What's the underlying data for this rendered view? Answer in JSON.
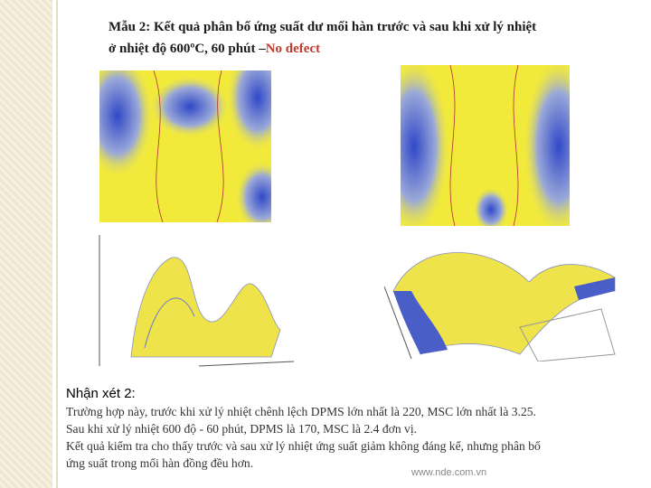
{
  "header": {
    "title_line1": "Mẫu 2: Kết quả phân bố ứng suất dư mối hàn trước và sau khi xử lý nhiệt",
    "title_line2": "ở nhiệt độ 600ºC, 60 phút –",
    "title_highlight": "No defect"
  },
  "body": {
    "heading": "Nhận xét 2:",
    "lines": [
      "Trường hợp này, trước khi xử lý nhiệt chênh lệch DPMS lớn nhất là 220, MSC lớn nhất là 3.25.",
      "Sau khi xử lý nhiệt 600 độ - 60 phút, DPMS là 170, MSC là 2.4 đơn vị.",
      "Kết quả kiểm tra cho thấy trước và sau xử lý nhiệt ứng suất giảm không đáng kể, nhưng phân bố",
      "ứng suất trong mối hàn đồng đều hơn."
    ]
  },
  "footer": {
    "url": "www.nde.com.vn"
  }
}
